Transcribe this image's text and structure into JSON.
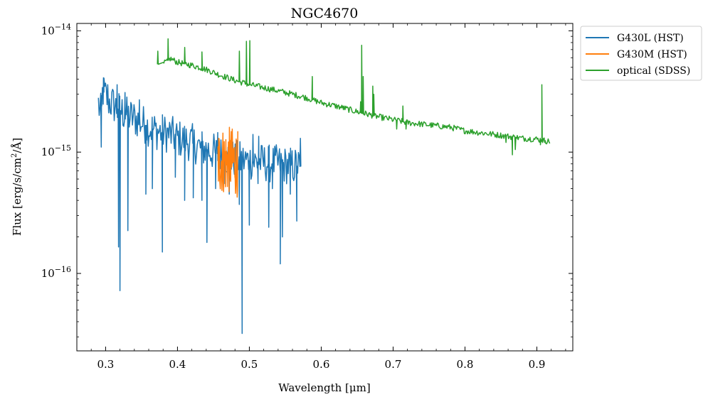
{
  "chart_data": {
    "type": "line",
    "title": "NGC4670",
    "xlabel": "Wavelength [μm]",
    "ylabel_parts": [
      "Flux [erg/s/cm",
      "2",
      "/Å]"
    ],
    "xscale": "linear",
    "yscale": "log",
    "xlim": [
      0.26,
      0.95
    ],
    "ylim": [
      2.3e-17,
      1.15e-14
    ],
    "x_ticks": [
      {
        "value": 0.3,
        "label": "0.3"
      },
      {
        "value": 0.4,
        "label": "0.4"
      },
      {
        "value": 0.5,
        "label": "0.5"
      },
      {
        "value": 0.6,
        "label": "0.6"
      },
      {
        "value": 0.7,
        "label": "0.7"
      },
      {
        "value": 0.8,
        "label": "0.8"
      },
      {
        "value": 0.9,
        "label": "0.9"
      }
    ],
    "y_ticks": [
      {
        "value": 1e-16,
        "base": "10",
        "exp": "−16"
      },
      {
        "value": 1e-15,
        "base": "10",
        "exp": "−15"
      },
      {
        "value": 1e-14,
        "base": "10",
        "exp": "−14"
      }
    ],
    "legend_position": "outside-top-right",
    "series": [
      {
        "name": "G430L (HST)",
        "color": "#1f77b4",
        "x": [
          0.29,
          0.293,
          0.296,
          0.3,
          0.305,
          0.31,
          0.315,
          0.32,
          0.33,
          0.34,
          0.35,
          0.36,
          0.37,
          0.38,
          0.39,
          0.4,
          0.41,
          0.42,
          0.43,
          0.44,
          0.45,
          0.46,
          0.47,
          0.48,
          0.49,
          0.5,
          0.51,
          0.52,
          0.53,
          0.54,
          0.55,
          0.56,
          0.57
        ],
        "y_e15": [
          2.5,
          2.0,
          3.2,
          2.9,
          2.6,
          2.5,
          2.3,
          2.2,
          2.0,
          1.9,
          1.75,
          1.6,
          1.5,
          1.45,
          1.4,
          1.3,
          1.25,
          1.2,
          1.1,
          1.05,
          1.0,
          0.95,
          0.9,
          0.88,
          0.85,
          0.85,
          0.83,
          0.82,
          0.8,
          0.8,
          0.78,
          0.77,
          0.76
        ],
        "noise": 0.16,
        "dips": [
          {
            "x": 0.294,
            "y_e15": 1.1
          },
          {
            "x": 0.318,
            "y_e15": 0.165
          },
          {
            "x": 0.32,
            "y_e15": 0.072
          },
          {
            "x": 0.331,
            "y_e15": 0.225
          },
          {
            "x": 0.356,
            "y_e15": 0.45
          },
          {
            "x": 0.365,
            "y_e15": 0.5
          },
          {
            "x": 0.379,
            "y_e15": 0.15
          },
          {
            "x": 0.397,
            "y_e15": 0.62
          },
          {
            "x": 0.41,
            "y_e15": 0.4
          },
          {
            "x": 0.422,
            "y_e15": 0.42
          },
          {
            "x": 0.434,
            "y_e15": 0.4
          },
          {
            "x": 0.441,
            "y_e15": 0.18
          },
          {
            "x": 0.453,
            "y_e15": 0.5
          },
          {
            "x": 0.466,
            "y_e15": 0.55
          },
          {
            "x": 0.472,
            "y_e15": 0.45
          },
          {
            "x": 0.486,
            "y_e15": 0.37
          },
          {
            "x": 0.49,
            "y_e15": 0.032
          },
          {
            "x": 0.5,
            "y_e15": 0.25
          },
          {
            "x": 0.512,
            "y_e15": 0.55
          },
          {
            "x": 0.527,
            "y_e15": 0.24
          },
          {
            "x": 0.532,
            "y_e15": 0.5
          },
          {
            "x": 0.543,
            "y_e15": 0.12
          },
          {
            "x": 0.546,
            "y_e15": 0.2
          },
          {
            "x": 0.557,
            "y_e15": 0.45
          },
          {
            "x": 0.566,
            "y_e15": 0.27
          }
        ],
        "spikes": [
          {
            "x": 0.297,
            "y_e15": 4.1
          },
          {
            "x": 0.303,
            "y_e15": 3.6
          },
          {
            "x": 0.316,
            "y_e15": 3.6
          },
          {
            "x": 0.327,
            "y_e15": 3.1
          },
          {
            "x": 0.347,
            "y_e15": 2.7
          },
          {
            "x": 0.456,
            "y_e15": 1.45
          },
          {
            "x": 0.505,
            "y_e15": 1.4
          },
          {
            "x": 0.513,
            "y_e15": 1.35
          },
          {
            "x": 0.571,
            "y_e15": 1.3
          }
        ]
      },
      {
        "name": "G430M (HST)",
        "color": "#ff7f0e",
        "x": [
          0.456,
          0.465,
          0.475,
          0.484
        ],
        "y_e15": [
          0.85,
          0.85,
          0.85,
          0.8
        ],
        "noise": 0.28,
        "dips": [],
        "spikes": []
      },
      {
        "name": "optical (SDSS)",
        "color": "#2ca02c",
        "x": [
          0.38,
          0.39,
          0.4,
          0.42,
          0.44,
          0.46,
          0.48,
          0.5,
          0.52,
          0.54,
          0.56,
          0.58,
          0.6,
          0.62,
          0.65,
          0.68,
          0.7,
          0.72,
          0.74,
          0.76,
          0.78,
          0.8,
          0.82,
          0.84,
          0.86,
          0.88,
          0.9,
          0.918
        ],
        "y_e15": [
          5.3,
          5.9,
          5.5,
          5.2,
          4.8,
          4.3,
          3.9,
          3.6,
          3.4,
          3.2,
          3.0,
          2.8,
          2.55,
          2.4,
          2.15,
          1.95,
          1.85,
          1.75,
          1.7,
          1.65,
          1.6,
          1.5,
          1.45,
          1.4,
          1.35,
          1.3,
          1.28,
          1.22
        ],
        "noise": 0.025,
        "dips": [
          {
            "x": 0.705,
            "y_e15": 1.55
          },
          {
            "x": 0.718,
            "y_e15": 1.55
          },
          {
            "x": 0.857,
            "y_e15": 1.2
          },
          {
            "x": 0.866,
            "y_e15": 0.95
          },
          {
            "x": 0.87,
            "y_e15": 1.05
          },
          {
            "x": 0.905,
            "y_e15": 1.15
          },
          {
            "x": 0.911,
            "y_e15": 1.2
          }
        ],
        "spikes": [
          {
            "x": 0.3727,
            "y_e15": 6.8
          },
          {
            "x": 0.3869,
            "y_e15": 8.6
          },
          {
            "x": 0.4101,
            "y_e15": 7.3
          },
          {
            "x": 0.434,
            "y_e15": 6.7
          },
          {
            "x": 0.4861,
            "y_e15": 6.8
          },
          {
            "x": 0.4959,
            "y_e15": 8.2
          },
          {
            "x": 0.5007,
            "y_e15": 8.3
          },
          {
            "x": 0.5876,
            "y_e15": 4.2
          },
          {
            "x": 0.63,
            "y_e15": 2.4
          },
          {
            "x": 0.6548,
            "y_e15": 2.6
          },
          {
            "x": 0.6563,
            "y_e15": 7.6
          },
          {
            "x": 0.6584,
            "y_e15": 4.2
          },
          {
            "x": 0.6717,
            "y_e15": 3.5
          },
          {
            "x": 0.6731,
            "y_e15": 3.0
          },
          {
            "x": 0.7136,
            "y_e15": 2.4
          },
          {
            "x": 0.9069,
            "y_e15": 3.6
          }
        ]
      }
    ]
  }
}
